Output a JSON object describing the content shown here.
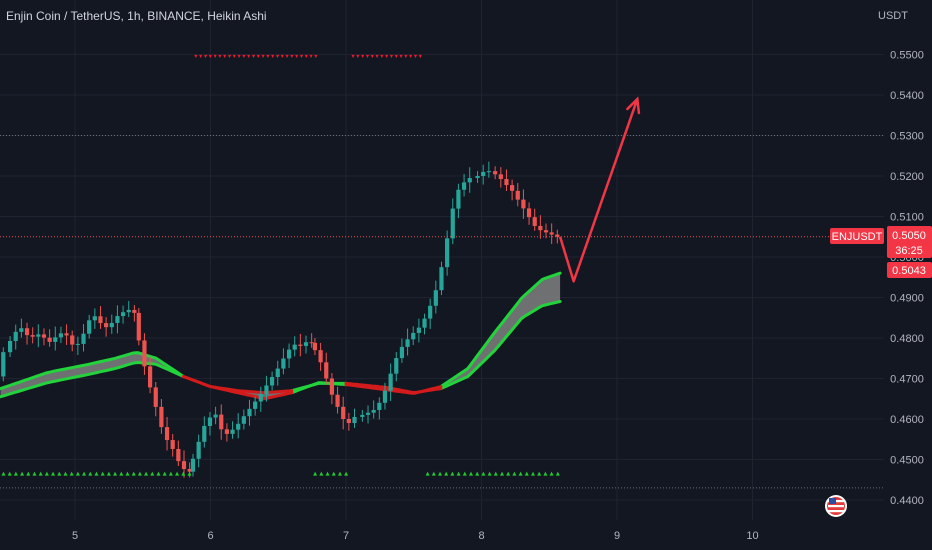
{
  "title": "Enjin Coin / TetherUS, 1h, BINANCE, Heikin Ashi",
  "currency": "USDT",
  "symbol_tag": "ENJUSDT",
  "price_label": "0.5050",
  "countdown": "36:25",
  "secondary_price_label": "0.5043",
  "flag_icon": "us-flag-icon",
  "colors": {
    "background": "#131722",
    "bull": "#26a69a",
    "bear": "#ef5350",
    "ribbon_green": "#22d33b",
    "ribbon_red": "#d41b1b",
    "ribbon_fill": "#808080",
    "arrow": "#f23645",
    "signal_up": "#22c931",
    "signal_down": "#e8192c",
    "tag_bg": "#f23645"
  },
  "chart_data": {
    "type": "candlestick",
    "style": "Heikin Ashi",
    "timeframe": "1h",
    "exchange": "BINANCE",
    "x_ticks": [
      "5",
      "6",
      "7",
      "8",
      "9",
      "10"
    ],
    "y_ticks": [
      "0.5500",
      "0.5400",
      "0.5300",
      "0.5200",
      "0.5100",
      "0.5000",
      "0.4900",
      "0.4800",
      "0.4700",
      "0.4600",
      "0.4500",
      "0.4400"
    ],
    "ylim": [
      0.4385,
      0.5615
    ],
    "xlim": [
      4.45,
      11.0
    ],
    "last_price": 0.505,
    "horizontal_levels": [
      0.53,
      0.443
    ],
    "candle_segments": [
      {
        "t0": 4.45,
        "t1": 4.5,
        "values": [
          0.4705,
          0.474,
          0.4765
        ]
      },
      {
        "t0": 4.5,
        "t1": 5.45,
        "values": [
          0.4765,
          0.479,
          0.481,
          0.483,
          0.4815,
          0.48,
          0.4805,
          0.481,
          0.48,
          0.479,
          0.48,
          0.481,
          0.4815,
          0.4795,
          0.4775,
          0.479,
          0.4815,
          0.4845,
          0.4855,
          0.484,
          0.4825,
          0.483,
          0.4845,
          0.486,
          0.4865,
          0.487,
          0.4862
        ]
      },
      {
        "t0": 5.45,
        "t1": 5.85,
        "values": [
          0.4862,
          0.48,
          0.474,
          0.469,
          0.465,
          0.46,
          0.456,
          0.454,
          0.452,
          0.449,
          0.4475,
          0.447
        ]
      },
      {
        "t0": 5.85,
        "t1": 6.75,
        "values": [
          0.447,
          0.45,
          0.454,
          0.458,
          0.46,
          0.462,
          0.458,
          0.456,
          0.457,
          0.458,
          0.46,
          0.4615,
          0.4635,
          0.465,
          0.467,
          0.469,
          0.471,
          0.473,
          0.4755,
          0.4775,
          0.4785,
          0.478,
          0.479,
          0.4788
        ]
      },
      {
        "t0": 6.75,
        "t1": 7.1,
        "values": [
          0.4788,
          0.477,
          0.474,
          0.47,
          0.466,
          0.463,
          0.46,
          0.459,
          0.4605
        ]
      },
      {
        "t0": 7.1,
        "t1": 7.95,
        "values": [
          0.4605,
          0.461,
          0.4615,
          0.462,
          0.4635,
          0.466,
          0.47,
          0.474,
          0.477,
          0.479,
          0.4805,
          0.482,
          0.483,
          0.486,
          0.489,
          0.493,
          0.499,
          0.506,
          0.513,
          0.517,
          0.5185,
          0.5195
        ]
      },
      {
        "t0": 7.95,
        "t1": 8.08,
        "values": [
          0.5195,
          0.52,
          0.521,
          0.5212
        ]
      },
      {
        "t0": 8.08,
        "t1": 8.6,
        "values": [
          0.5212,
          0.5205,
          0.5195,
          0.518,
          0.517,
          0.515,
          0.513,
          0.511,
          0.509,
          0.507,
          0.5065,
          0.506,
          0.5055,
          0.505
        ]
      }
    ],
    "ribbon_fast": [
      [
        4.45,
        0.4675
      ],
      [
        4.8,
        0.4715
      ],
      [
        5.1,
        0.4735
      ],
      [
        5.3,
        0.475
      ],
      [
        5.45,
        0.4765
      ],
      [
        5.6,
        0.475
      ],
      [
        5.8,
        0.4705
      ],
      [
        6.0,
        0.468
      ],
      [
        6.2,
        0.4665
      ],
      [
        6.4,
        0.465
      ],
      [
        6.6,
        0.4665
      ],
      [
        6.8,
        0.469
      ],
      [
        7.0,
        0.4685
      ],
      [
        7.3,
        0.4672
      ],
      [
        7.5,
        0.4663
      ],
      [
        7.7,
        0.468
      ],
      [
        7.9,
        0.4725
      ],
      [
        8.1,
        0.4815
      ],
      [
        8.3,
        0.49
      ],
      [
        8.45,
        0.4945
      ],
      [
        8.58,
        0.496
      ]
    ],
    "ribbon_slow": [
      [
        4.45,
        0.4655
      ],
      [
        4.8,
        0.469
      ],
      [
        5.1,
        0.471
      ],
      [
        5.3,
        0.4725
      ],
      [
        5.45,
        0.474
      ],
      [
        5.6,
        0.4735
      ],
      [
        5.8,
        0.4705
      ],
      [
        6.0,
        0.468
      ],
      [
        6.2,
        0.467
      ],
      [
        6.4,
        0.4665
      ],
      [
        6.6,
        0.467
      ],
      [
        6.8,
        0.4688
      ],
      [
        7.0,
        0.4688
      ],
      [
        7.3,
        0.4678
      ],
      [
        7.5,
        0.4665
      ],
      [
        7.7,
        0.4675
      ],
      [
        7.9,
        0.4705
      ],
      [
        8.1,
        0.477
      ],
      [
        8.3,
        0.485
      ],
      [
        8.45,
        0.488
      ],
      [
        8.58,
        0.489
      ]
    ],
    "ribbon_green_spans": [
      [
        4.45,
        5.8
      ],
      [
        6.6,
        7.0
      ],
      [
        7.7,
        8.58
      ]
    ],
    "ribbon_red_spans": [
      [
        5.8,
        6.6
      ],
      [
        7.0,
        7.7
      ]
    ],
    "buy_signal_spans": [
      [
        4.45,
        5.85
      ],
      [
        6.75,
        7.02
      ],
      [
        7.58,
        8.58
      ]
    ],
    "sell_signal_spans": [
      [
        5.87,
        6.78
      ],
      [
        7.03,
        7.55
      ]
    ],
    "buy_signal_price": 0.4465,
    "sell_signal_price": 0.5495,
    "projection_arrow": [
      [
        8.58,
        0.505
      ],
      [
        8.68,
        0.494
      ],
      [
        9.15,
        0.539
      ]
    ]
  }
}
